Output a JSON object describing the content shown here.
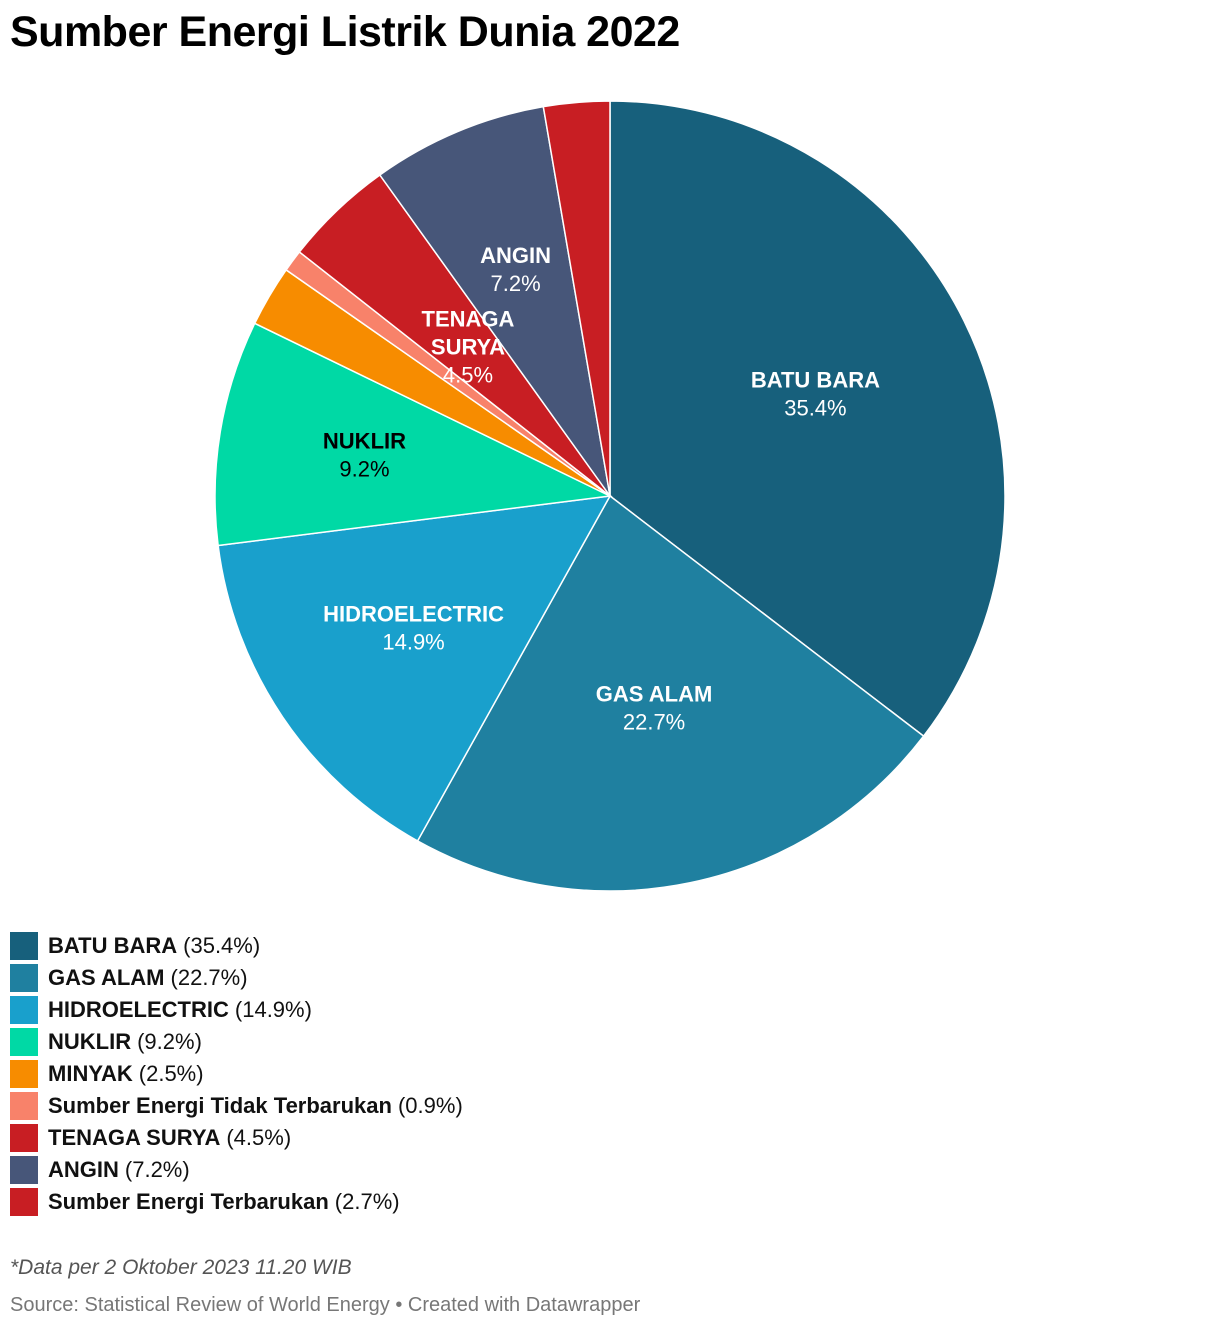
{
  "chart_data": {
    "type": "pie",
    "title": "Sumber Energi Listrik Dunia 2022",
    "start_angle_deg": 0,
    "slices": [
      {
        "name": "BATU BARA",
        "value": 35.4,
        "value_label": "35.4%",
        "color": "#17607c",
        "label_color": "#ffffff",
        "show_label": true
      },
      {
        "name": "GAS ALAM",
        "value": 22.7,
        "value_label": "22.7%",
        "color": "#1f80a0",
        "label_color": "#ffffff",
        "show_label": true
      },
      {
        "name": "HIDROELECTRIC",
        "value": 14.9,
        "value_label": "14.9%",
        "color": "#19a0cc",
        "label_color": "#ffffff",
        "show_label": true
      },
      {
        "name": "NUKLIR",
        "value": 9.2,
        "value_label": "9.2%",
        "color": "#00d9a5",
        "label_color": "#000000",
        "show_label": true
      },
      {
        "name": "MINYAK",
        "value": 2.5,
        "value_label": "2.5%",
        "color": "#f78c00",
        "label_color": "#000000",
        "show_label": false
      },
      {
        "name": "Sumber Energi Tidak Terbarukan",
        "value": 0.9,
        "value_label": "0.9%",
        "color": "#f8826a",
        "label_color": "#000000",
        "show_label": false
      },
      {
        "name": "TENAGA SURYA",
        "value": 4.5,
        "value_label": "4.5%",
        "color": "#c81e23",
        "label_color": "#ffffff",
        "show_label": true
      },
      {
        "name": "ANGIN",
        "value": 7.2,
        "value_label": "7.2%",
        "color": "#475679",
        "label_color": "#ffffff",
        "show_label": true
      },
      {
        "name": "Sumber Energi Terbarukan",
        "value": 2.7,
        "value_label": "2.7%",
        "color": "#c81e23",
        "label_color": "#ffffff",
        "show_label": false
      }
    ],
    "legend_placement": "bottom-left"
  },
  "footnote": "*Data per 2 Oktober 2023 11.20 WIB",
  "source": "Source: Statistical Review of World Energy • Created with Datawrapper"
}
